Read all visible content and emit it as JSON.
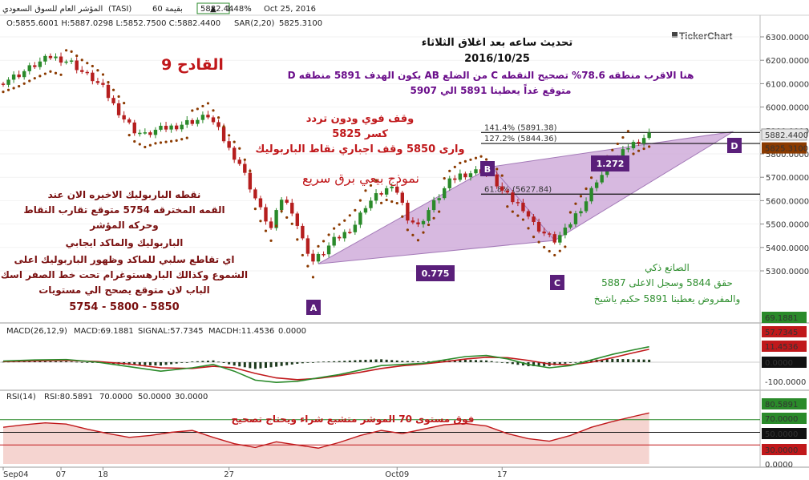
{
  "header": {
    "date": "Oct 25, 2016",
    "change_pct": "1.48%",
    "up_arrow": "▲",
    "last": "5882.44",
    "volume": "60 بقيمة",
    "symbol": "(TASI)",
    "name": "المؤشر العام للسوق السعودي",
    "ohlc": "O:5855.6001  H:5887.0298  L:5852.7500  C:5882.4400",
    "sar_label": "SAR(2,20)",
    "sar_value": "5825.3100",
    "logo": "TickerChart"
  },
  "colors": {
    "up": "#2a8a2a",
    "down": "#b51e1e",
    "sar": "#8b3a00",
    "pattern": "#c9a2d6",
    "label_box": "#5a1f7a",
    "annotation_red": "#c0181b",
    "annotation_purple": "#6a0d8a",
    "annotation_green": "#2f8f2f",
    "annotation_brown": "#7a1010",
    "macd_line": "#2a8a2a",
    "signal_line": "#c0181b",
    "rsi_line": "#c0181b"
  },
  "annotations": {
    "title_line1": "تحديث ساعه بعد اغلاق الثلاثاء",
    "title_line2": "2016/10/25",
    "main_line1": "هنا الاقرب منطقه 78.6% تصحيح النقطه C من الضلع AB يكون الهدف 5891 منطقه D",
    "main_line2": "متوقع غداً يعطينا 5891 الي 5907",
    "qadeh": "القادح 9",
    "stop_line1": "وقف فوي ودون تردد",
    "stop_line2": "كسر 5825",
    "stop_line3": "وارى 5850 وقف اجباري نقاط الباربوليك",
    "pattern_name": "نموذج بيعي برق سريع",
    "left_line1": "نقطه الباربوليك الاخيره الان عند",
    "left_line2": "القمه المخترقه 5754 متوقع تقارب النقاط",
    "left_line3": "وحركه المؤشر",
    "left_line4": "الباربوليك والماكد ايجابي",
    "left_line5": "اي تقاطع سلبي للماكد وظهور الباربوليك اعلى",
    "left_line6": "الشموع وكذالك البارهستوغرام تحت خط الصفر اسك",
    "left_line7": "الباب لان متوقع يصحح الي مستويات",
    "left_line8": "5754 - 5800 - 5850",
    "right_line1": "الصانع ذكي",
    "right_line2": "حقق 5844 وسجل الاعلى 5887",
    "right_line3": "والمفروض يعطينا 5891 حكيم ياشيخ",
    "rsi_note": "فوق مستوى 70 الموشر متشبع شراء ويحتاج تصحيح"
  },
  "pattern": {
    "points": [
      "A",
      "B",
      "C",
      "D"
    ],
    "ratio_ab": "0.775",
    "ratio_cd": "1.272",
    "fib_141": "141.4%  (5891.38)",
    "fib_127": "127.2%  (5844.36)",
    "fib_618": "61.8%  (5627.84)"
  },
  "chart_data": {
    "type": "candlestick",
    "price_axis": {
      "ticks": [
        "6300.0000",
        "6200.0000",
        "6100.0000",
        "6000.0000",
        "5900.0000",
        "5800.0000",
        "5700.0000",
        "5600.0000",
        "5500.0000",
        "5400.0000",
        "5300.0000"
      ],
      "last_price": "5882.4400",
      "sar_price": "5825.3100"
    },
    "x_labels": [
      "Sep04",
      "07",
      "18",
      "27",
      "Oct09",
      "17"
    ],
    "close_path": [
      [
        0,
        6110
      ],
      [
        3,
        6140
      ],
      [
        6,
        6180
      ],
      [
        9,
        6215
      ],
      [
        11,
        6205
      ],
      [
        13,
        6190
      ],
      [
        15,
        6150
      ],
      [
        17,
        6120
      ],
      [
        19,
        6080
      ],
      [
        21,
        6010
      ],
      [
        23,
        5950
      ],
      [
        25,
        5900
      ],
      [
        27,
        5880
      ],
      [
        29,
        5900
      ],
      [
        31,
        5910
      ],
      [
        33,
        5920
      ],
      [
        35,
        5935
      ],
      [
        37,
        5945
      ],
      [
        39,
        5965
      ],
      [
        41,
        5900
      ],
      [
        43,
        5820
      ],
      [
        45,
        5760
      ],
      [
        47,
        5660
      ],
      [
        49,
        5560
      ],
      [
        51,
        5480
      ],
      [
        53,
        5610
      ],
      [
        55,
        5560
      ],
      [
        57,
        5430
      ],
      [
        59,
        5340
      ],
      [
        61,
        5380
      ],
      [
        63,
        5430
      ],
      [
        65,
        5460
      ],
      [
        67,
        5500
      ],
      [
        69,
        5580
      ],
      [
        71,
        5620
      ],
      [
        73,
        5650
      ],
      [
        75,
        5640
      ],
      [
        77,
        5530
      ],
      [
        79,
        5490
      ],
      [
        81,
        5560
      ],
      [
        83,
        5620
      ],
      [
        85,
        5680
      ],
      [
        87,
        5710
      ],
      [
        89,
        5720
      ],
      [
        91,
        5730
      ],
      [
        93,
        5700
      ],
      [
        95,
        5640
      ],
      [
        97,
        5600
      ],
      [
        99,
        5570
      ],
      [
        101,
        5500
      ],
      [
        103,
        5460
      ],
      [
        105,
        5430
      ],
      [
        107,
        5470
      ],
      [
        109,
        5540
      ],
      [
        111,
        5600
      ],
      [
        113,
        5690
      ],
      [
        115,
        5730
      ],
      [
        117,
        5780
      ],
      [
        119,
        5830
      ],
      [
        121,
        5860
      ],
      [
        123,
        5882
      ]
    ],
    "macd": {
      "params": "MACD(26,12,9)",
      "macd": "MACD:69.1881",
      "signal": "SIGNAL:57.7345",
      "hist": "MACDH:11.4536",
      "zero": "0.0000",
      "axis": [
        "69.1881",
        "57.7345",
        "11.4536",
        "0.0000",
        "-100.0000"
      ],
      "line": [
        [
          0,
          5
        ],
        [
          6,
          10
        ],
        [
          12,
          12
        ],
        [
          18,
          0
        ],
        [
          24,
          -20
        ],
        [
          30,
          -40
        ],
        [
          36,
          -25
        ],
        [
          40,
          -10
        ],
        [
          44,
          -40
        ],
        [
          48,
          -80
        ],
        [
          52,
          -90
        ],
        [
          56,
          -85
        ],
        [
          60,
          -70
        ],
        [
          64,
          -55
        ],
        [
          68,
          -35
        ],
        [
          72,
          -15
        ],
        [
          76,
          -10
        ],
        [
          80,
          -5
        ],
        [
          84,
          10
        ],
        [
          88,
          25
        ],
        [
          92,
          30
        ],
        [
          96,
          15
        ],
        [
          100,
          -10
        ],
        [
          104,
          -25
        ],
        [
          108,
          -15
        ],
        [
          112,
          10
        ],
        [
          116,
          35
        ],
        [
          120,
          55
        ],
        [
          123,
          69
        ]
      ],
      "signal_line": [
        [
          0,
          3
        ],
        [
          6,
          6
        ],
        [
          12,
          8
        ],
        [
          18,
          3
        ],
        [
          24,
          -8
        ],
        [
          30,
          -25
        ],
        [
          36,
          -28
        ],
        [
          40,
          -18
        ],
        [
          44,
          -25
        ],
        [
          48,
          -50
        ],
        [
          52,
          -70
        ],
        [
          56,
          -78
        ],
        [
          60,
          -72
        ],
        [
          64,
          -60
        ],
        [
          68,
          -45
        ],
        [
          72,
          -28
        ],
        [
          76,
          -16
        ],
        [
          80,
          -8
        ],
        [
          84,
          2
        ],
        [
          88,
          14
        ],
        [
          92,
          22
        ],
        [
          96,
          20
        ],
        [
          100,
          8
        ],
        [
          104,
          -8
        ],
        [
          108,
          -12
        ],
        [
          112,
          0
        ],
        [
          116,
          20
        ],
        [
          120,
          42
        ],
        [
          123,
          57.7
        ]
      ]
    },
    "rsi": {
      "params": "RSI(14)",
      "rsi": "RSI:80.5891",
      "level_70": "70.0000",
      "level_50": "50.0000",
      "level_30": "30.0000",
      "axis": [
        "80.5891",
        "70.0000",
        "50.0000",
        "30.0000",
        "0.0000"
      ],
      "line": [
        [
          0,
          58
        ],
        [
          4,
          62
        ],
        [
          8,
          65
        ],
        [
          12,
          63
        ],
        [
          16,
          55
        ],
        [
          20,
          48
        ],
        [
          24,
          42
        ],
        [
          28,
          45
        ],
        [
          32,
          50
        ],
        [
          36,
          53
        ],
        [
          40,
          42
        ],
        [
          44,
          32
        ],
        [
          48,
          26
        ],
        [
          52,
          35
        ],
        [
          56,
          30
        ],
        [
          60,
          25
        ],
        [
          64,
          34
        ],
        [
          68,
          45
        ],
        [
          72,
          53
        ],
        [
          76,
          48
        ],
        [
          80,
          55
        ],
        [
          84,
          62
        ],
        [
          88,
          64
        ],
        [
          92,
          60
        ],
        [
          96,
          48
        ],
        [
          100,
          40
        ],
        [
          104,
          36
        ],
        [
          108,
          45
        ],
        [
          112,
          58
        ],
        [
          116,
          67
        ],
        [
          120,
          75
        ],
        [
          123,
          80.6
        ]
      ]
    }
  }
}
